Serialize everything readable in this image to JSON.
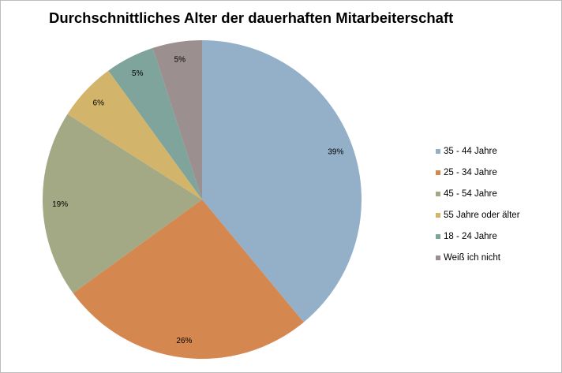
{
  "chart_data": {
    "type": "pie",
    "title": "Durchschnittliches Alter der dauerhaften Mitarbeiterschaft",
    "slices": [
      {
        "label": "35 - 44 Jahre",
        "value": 39,
        "value_label": "39%",
        "color": "#93b0c8"
      },
      {
        "label": "25 - 34 Jahre",
        "value": 26,
        "value_label": "26%",
        "color": "#d4874e"
      },
      {
        "label": "45 - 54 Jahre",
        "value": 19,
        "value_label": "19%",
        "color": "#a3a885"
      },
      {
        "label": "55 Jahre oder älter",
        "value": 6,
        "value_label": "6%",
        "color": "#d2b46a"
      },
      {
        "label": "18 - 24 Jahre",
        "value": 5,
        "value_label": "5%",
        "color": "#7fa49b"
      },
      {
        "label": "Weiß ich nicht",
        "value": 5,
        "value_label": "5%",
        "color": "#9b8f8f"
      }
    ],
    "start_angle": "12 o'clock",
    "direction": "clockwise",
    "legend_position": "right"
  }
}
